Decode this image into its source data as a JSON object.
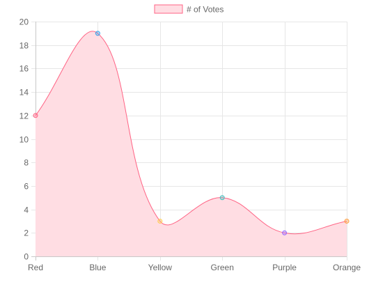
{
  "chart_data": {
    "type": "area",
    "categories": [
      "Red",
      "Blue",
      "Yellow",
      "Green",
      "Purple",
      "Orange"
    ],
    "series": [
      {
        "name": "# of Votes",
        "values": [
          12,
          19,
          3,
          5,
          2,
          3
        ],
        "line_color": "#ff6384",
        "fill_color": "#ffdde3",
        "point_colors": [
          "#ff6384",
          "#36a2eb",
          "#ffce56",
          "#4bc0c0",
          "#9966ff",
          "#ff9f40"
        ]
      }
    ],
    "ylim": [
      0,
      20
    ],
    "y_ticks": [
      0,
      2,
      4,
      6,
      8,
      10,
      12,
      14,
      16,
      18,
      20
    ],
    "grid": true,
    "curve": "smooth",
    "legend_position": "top-center",
    "title": "",
    "xlabel": "",
    "ylabel": ""
  }
}
